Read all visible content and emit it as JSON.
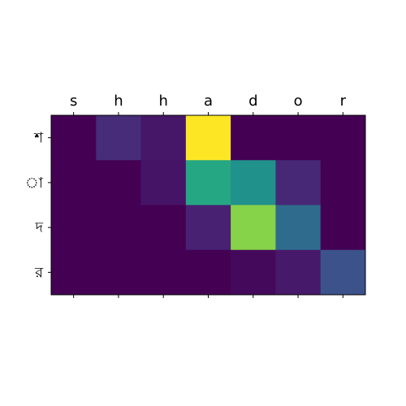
{
  "chart_data": {
    "type": "heatmap",
    "title": "",
    "xlabel": "",
    "ylabel": "",
    "x_labels": [
      "s",
      "h",
      "h",
      "a",
      "d",
      "o",
      "r"
    ],
    "y_labels": [
      "শ",
      "া",
      "দ",
      "র"
    ],
    "values": [
      [
        0.0,
        0.15,
        0.08,
        1.0,
        0.0,
        0.0,
        0.0
      ],
      [
        0.0,
        0.0,
        0.07,
        0.6,
        0.5,
        0.14,
        0.0
      ],
      [
        0.0,
        0.0,
        0.0,
        0.12,
        0.82,
        0.35,
        0.0
      ],
      [
        0.0,
        0.0,
        0.0,
        0.0,
        0.03,
        0.09,
        0.25
      ]
    ],
    "vmin": 0,
    "vmax": 1,
    "colormap": "viridis",
    "x_tick_position": "top",
    "grid": false,
    "legend": "none"
  }
}
